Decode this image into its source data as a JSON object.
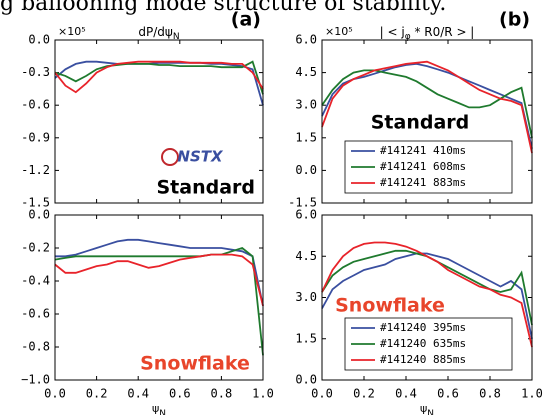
{
  "caption_fragment": "g ballooning mode structure of stability.",
  "chart_data": [
    {
      "type": "line",
      "panel_label": "(a)",
      "title_parts": [
        {
          "text": "dP/dψ"
        },
        {
          "text": "N",
          "sub": true
        }
      ],
      "y_multiplier": "×10⁵",
      "x": [
        0,
        0.05,
        0.1,
        0.15,
        0.2,
        0.25,
        0.3,
        0.35,
        0.4,
        0.45,
        0.5,
        0.55,
        0.6,
        0.65,
        0.7,
        0.75,
        0.8,
        0.85,
        0.9,
        0.95,
        1.0
      ],
      "xlim": [
        0,
        1
      ],
      "xticks": [
        0,
        0.2,
        0.4,
        0.6,
        0.8,
        1
      ],
      "ylim": [
        -1.5,
        0
      ],
      "yticks": [
        {
          "value": 0,
          "label": "0.0"
        },
        -0.3,
        -0.6,
        -0.9,
        -1.2,
        -1.5
      ],
      "annotations": [
        "NSTX",
        "Standard"
      ],
      "series": [
        {
          "color": "#3a4fa0",
          "values": [
            -0.35,
            -0.27,
            -0.22,
            -0.2,
            -0.2,
            -0.21,
            -0.22,
            -0.22,
            -0.22,
            -0.22,
            -0.21,
            -0.21,
            -0.21,
            -0.21,
            -0.21,
            -0.22,
            -0.22,
            -0.23,
            -0.24,
            -0.27,
            -0.6
          ]
        },
        {
          "color": "#1f7a2e",
          "values": [
            -0.3,
            -0.33,
            -0.38,
            -0.33,
            -0.27,
            -0.24,
            -0.23,
            -0.22,
            -0.22,
            -0.22,
            -0.23,
            -0.23,
            -0.24,
            -0.24,
            -0.24,
            -0.24,
            -0.25,
            -0.25,
            -0.25,
            -0.2,
            -0.5
          ]
        },
        {
          "color": "#e8232a",
          "values": [
            -0.3,
            -0.42,
            -0.48,
            -0.4,
            -0.3,
            -0.25,
            -0.22,
            -0.21,
            -0.2,
            -0.2,
            -0.2,
            -0.2,
            -0.2,
            -0.21,
            -0.21,
            -0.21,
            -0.21,
            -0.22,
            -0.22,
            -0.3,
            -0.45
          ]
        }
      ]
    },
    {
      "type": "line",
      "panel_label": "(b)",
      "title_parts": [
        {
          "text": "| < j"
        },
        {
          "text": "φ",
          "sub": true
        },
        {
          "text": " * R0/R > |"
        }
      ],
      "y_multiplier": "×10⁵",
      "x": [
        0,
        0.05,
        0.1,
        0.15,
        0.2,
        0.25,
        0.3,
        0.35,
        0.4,
        0.45,
        0.5,
        0.55,
        0.6,
        0.65,
        0.7,
        0.75,
        0.8,
        0.85,
        0.9,
        0.95,
        1.0
      ],
      "xlim": [
        0,
        1
      ],
      "xticks": [
        0,
        0.2,
        0.4,
        0.6,
        0.8,
        1
      ],
      "ylim": [
        -1.5,
        6
      ],
      "yticks": [
        {
          "value": 6,
          "label": "6.0"
        },
        4.5,
        {
          "value": 3,
          "label": "3.0"
        },
        1.5,
        {
          "value": 0,
          "label": "0.0"
        },
        -1.5
      ],
      "annotations": [
        "Standard"
      ],
      "series": [
        {
          "name": "#141241 410ms",
          "color": "#3a4fa0",
          "values": [
            2.5,
            3.5,
            4.0,
            4.2,
            4.3,
            4.45,
            4.6,
            4.75,
            4.85,
            4.9,
            4.8,
            4.65,
            4.5,
            4.3,
            4.1,
            3.9,
            3.7,
            3.5,
            3.3,
            3.1,
            1.0
          ]
        },
        {
          "name": "#141241 608ms",
          "color": "#1f7a2e",
          "values": [
            3.0,
            3.7,
            4.2,
            4.5,
            4.6,
            4.6,
            4.5,
            4.4,
            4.3,
            4.1,
            3.8,
            3.5,
            3.3,
            3.1,
            2.9,
            2.9,
            3.0,
            3.3,
            3.6,
            3.8,
            1.5
          ]
        },
        {
          "name": "#141241 883ms",
          "color": "#e8232a",
          "values": [
            2.0,
            3.3,
            3.9,
            4.2,
            4.4,
            4.6,
            4.7,
            4.8,
            4.9,
            4.95,
            5.0,
            4.8,
            4.6,
            4.3,
            4.0,
            3.7,
            3.5,
            3.3,
            3.2,
            3.0,
            0.8
          ]
        }
      ]
    },
    {
      "type": "line",
      "x": [
        0,
        0.05,
        0.1,
        0.15,
        0.2,
        0.25,
        0.3,
        0.35,
        0.4,
        0.45,
        0.5,
        0.55,
        0.6,
        0.65,
        0.7,
        0.75,
        0.8,
        0.85,
        0.9,
        0.95,
        1.0
      ],
      "xlim": [
        0,
        1
      ],
      "xticks": [
        {
          "value": 0,
          "label": "0.0"
        },
        0.2,
        0.4,
        0.6,
        0.8,
        {
          "value": 1,
          "label": "1.0"
        }
      ],
      "xlabel_parts": [
        {
          "text": "ψ"
        },
        {
          "text": "N",
          "sub": true
        }
      ],
      "ylim": [
        -1,
        0
      ],
      "yticks": [
        {
          "value": 0,
          "label": "0.0"
        },
        -0.2,
        -0.4,
        -0.6,
        -0.8,
        {
          "value": -1,
          "label": "−1.0"
        }
      ],
      "annotations": [
        "Snowflake"
      ],
      "series": [
        {
          "color": "#3a4fa0",
          "values": [
            -0.25,
            -0.25,
            -0.24,
            -0.22,
            -0.2,
            -0.18,
            -0.16,
            -0.15,
            -0.15,
            -0.16,
            -0.17,
            -0.18,
            -0.19,
            -0.2,
            -0.2,
            -0.2,
            -0.2,
            -0.21,
            -0.22,
            -0.25,
            -0.55
          ]
        },
        {
          "color": "#1f7a2e",
          "values": [
            -0.27,
            -0.26,
            -0.25,
            -0.25,
            -0.25,
            -0.25,
            -0.25,
            -0.25,
            -0.25,
            -0.25,
            -0.25,
            -0.25,
            -0.25,
            -0.25,
            -0.25,
            -0.24,
            -0.24,
            -0.22,
            -0.2,
            -0.25,
            -0.85
          ]
        },
        {
          "color": "#e8232a",
          "values": [
            -0.3,
            -0.35,
            -0.35,
            -0.33,
            -0.31,
            -0.3,
            -0.28,
            -0.28,
            -0.3,
            -0.32,
            -0.31,
            -0.29,
            -0.27,
            -0.26,
            -0.25,
            -0.24,
            -0.24,
            -0.24,
            -0.25,
            -0.3,
            -0.55
          ]
        }
      ]
    },
    {
      "type": "line",
      "x": [
        0,
        0.05,
        0.1,
        0.15,
        0.2,
        0.25,
        0.3,
        0.35,
        0.4,
        0.45,
        0.5,
        0.55,
        0.6,
        0.65,
        0.7,
        0.75,
        0.8,
        0.85,
        0.9,
        0.95,
        1.0
      ],
      "xlim": [
        0,
        1
      ],
      "xticks": [
        {
          "value": 0,
          "label": "0.0"
        },
        0.2,
        0.4,
        0.6,
        0.8,
        {
          "value": 1,
          "label": "1.0"
        }
      ],
      "xlabel_parts": [
        {
          "text": "ψ"
        },
        {
          "text": "N",
          "sub": true
        }
      ],
      "ylim": [
        0,
        6
      ],
      "yticks": [
        {
          "value": 6,
          "label": "6.0"
        },
        4.5,
        {
          "value": 3,
          "label": "3.0"
        },
        1.5,
        {
          "value": 0,
          "label": "0.0"
        }
      ],
      "annotations": [
        "Snowflake"
      ],
      "series": [
        {
          "name": "#141240 395ms",
          "color": "#3a4fa0",
          "values": [
            2.6,
            3.3,
            3.6,
            3.8,
            4.0,
            4.1,
            4.2,
            4.4,
            4.5,
            4.6,
            4.6,
            4.5,
            4.4,
            4.2,
            4.0,
            3.8,
            3.6,
            3.4,
            3.6,
            3.3,
            1.5
          ]
        },
        {
          "name": "#141240 635ms",
          "color": "#1f7a2e",
          "values": [
            3.2,
            3.8,
            4.1,
            4.3,
            4.4,
            4.5,
            4.6,
            4.7,
            4.7,
            4.6,
            4.5,
            4.3,
            4.1,
            3.9,
            3.7,
            3.5,
            3.3,
            3.2,
            3.3,
            3.9,
            2.0
          ]
        },
        {
          "name": "#141240 885ms",
          "color": "#e8232a",
          "values": [
            3.2,
            4.0,
            4.5,
            4.8,
            4.95,
            5.0,
            5.0,
            4.95,
            4.85,
            4.7,
            4.5,
            4.3,
            4.0,
            3.8,
            3.6,
            3.4,
            3.3,
            3.1,
            3.0,
            2.8,
            1.2
          ]
        }
      ]
    }
  ]
}
